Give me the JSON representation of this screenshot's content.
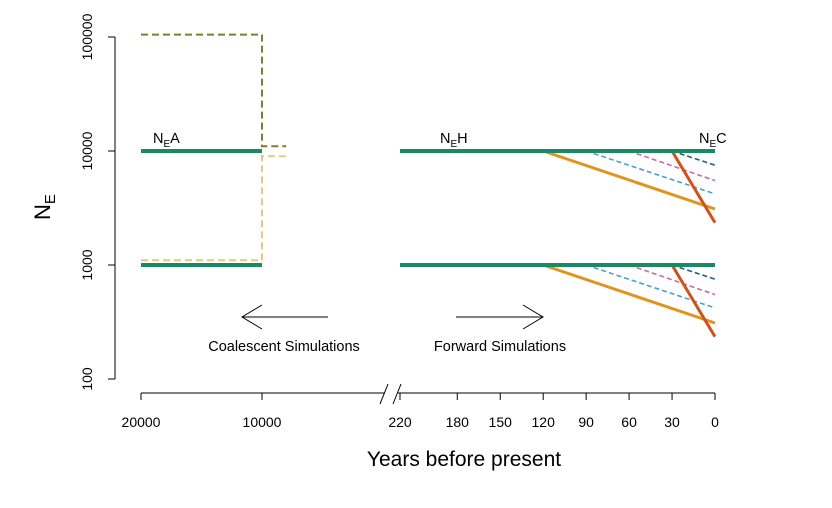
{
  "chart_data": {
    "type": "line",
    "title": "",
    "xlabel": "Years before present",
    "ylabel": {
      "main": "N",
      "sub": "E"
    },
    "y_scale": "log",
    "ylim": [
      100,
      100000
    ],
    "y_ticks": [
      100,
      1000,
      10000,
      100000
    ],
    "x_axis_left": {
      "range": [
        20000,
        10000
      ],
      "ticks": [
        20000,
        10000
      ]
    },
    "x_axis_right": {
      "range": [
        220,
        0
      ],
      "ticks": [
        220,
        180,
        150,
        120,
        90,
        60,
        30,
        0
      ]
    },
    "axis_break": true,
    "colors": {
      "ne_constant": "#1a8a64",
      "ne_ancient_high": "#7d7f2e",
      "ne_ancient_low": "#e0cb7e",
      "decline_120": "#e0941e",
      "decline_90": "#4aa0cf",
      "decline_60": "#c96aa0",
      "decline_30": "#d0521a",
      "decline_30_dashed": "#1f5a8a"
    },
    "series": [
      {
        "style": "solid",
        "color_key": "ne_constant",
        "panel": "left",
        "points": [
          [
            20000,
            10000
          ],
          [
            10000,
            10000
          ]
        ]
      },
      {
        "style": "solid",
        "color_key": "ne_constant",
        "panel": "left",
        "points": [
          [
            20000,
            1000
          ],
          [
            10000,
            1000
          ]
        ]
      },
      {
        "style": "solid",
        "color_key": "ne_constant",
        "panel": "right",
        "points": [
          [
            220,
            10000
          ],
          [
            0,
            10000
          ]
        ]
      },
      {
        "style": "solid",
        "color_key": "ne_constant",
        "panel": "right",
        "points": [
          [
            220,
            1000
          ],
          [
            0,
            1000
          ]
        ]
      },
      {
        "style": "dashed",
        "color_key": "ne_ancient_high",
        "panel": "left",
        "points": [
          [
            20000,
            105000
          ],
          [
            10000,
            105000
          ],
          [
            10000,
            11000
          ],
          [
            8000,
            11000
          ]
        ]
      },
      {
        "style": "dashed",
        "color_key": "ne_ancient_low",
        "panel": "left",
        "points": [
          [
            20000,
            1100
          ],
          [
            10000,
            1100
          ],
          [
            10000,
            9000
          ],
          [
            8000,
            9000
          ]
        ]
      },
      {
        "style": "solid",
        "color_key": "decline_120",
        "panel": "right",
        "points": [
          [
            120,
            10000
          ],
          [
            0,
            3100
          ]
        ]
      },
      {
        "style": "solid",
        "color_key": "decline_120",
        "panel": "right",
        "points": [
          [
            120,
            1000
          ],
          [
            0,
            310
          ]
        ]
      },
      {
        "style": "dashed",
        "color_key": "decline_90",
        "panel": "right",
        "points": [
          [
            90,
            10000
          ],
          [
            0,
            4200
          ]
        ]
      },
      {
        "style": "dashed",
        "color_key": "decline_90",
        "panel": "right",
        "points": [
          [
            90,
            1000
          ],
          [
            0,
            420
          ]
        ]
      },
      {
        "style": "dashed",
        "color_key": "decline_60",
        "panel": "right",
        "points": [
          [
            60,
            10000
          ],
          [
            0,
            5500
          ]
        ]
      },
      {
        "style": "dashed",
        "color_key": "decline_60",
        "panel": "right",
        "points": [
          [
            60,
            1000
          ],
          [
            0,
            550
          ]
        ]
      },
      {
        "style": "dashed",
        "color_key": "decline_30_dashed",
        "panel": "right",
        "points": [
          [
            30,
            10000
          ],
          [
            0,
            7500
          ]
        ]
      },
      {
        "style": "dashed",
        "color_key": "decline_30_dashed",
        "panel": "right",
        "points": [
          [
            30,
            1000
          ],
          [
            0,
            750
          ]
        ]
      },
      {
        "style": "solid",
        "color_key": "decline_30",
        "panel": "right",
        "points": [
          [
            30,
            10000
          ],
          [
            0,
            2350
          ]
        ]
      },
      {
        "style": "solid",
        "color_key": "decline_30",
        "panel": "right",
        "points": [
          [
            30,
            1000
          ],
          [
            0,
            235
          ]
        ]
      }
    ],
    "annotations": {
      "ne_a": {
        "main": "N",
        "sub": "E",
        "suffix": "A"
      },
      "ne_h": {
        "main": "N",
        "sub": "E",
        "suffix": "H"
      },
      "ne_c": {
        "main": "N",
        "sub": "E",
        "suffix": "C"
      },
      "coalescent": "Coalescent Simulations",
      "forward": "Forward Simulations"
    }
  }
}
